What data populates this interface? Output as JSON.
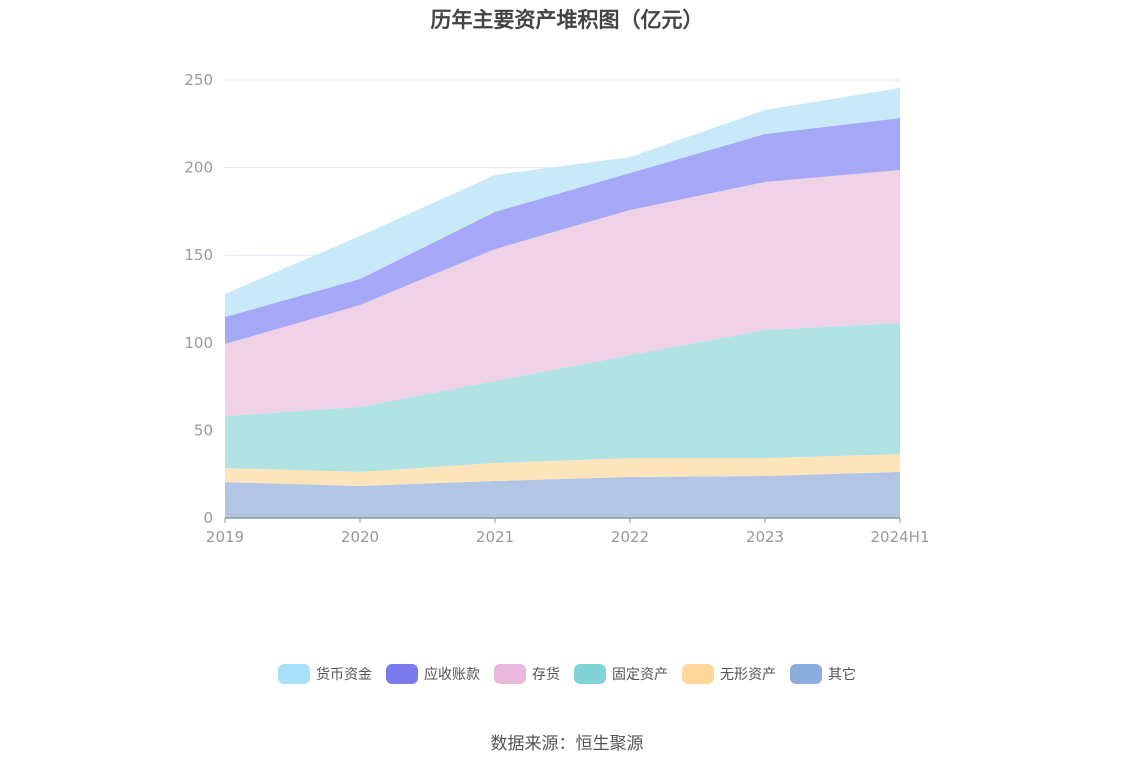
{
  "chart_data": {
    "type": "area",
    "stacked": true,
    "title": "历年主要资产堆积图（亿元）",
    "categories": [
      "2019",
      "2020",
      "2021",
      "2022",
      "2023",
      "2024H1"
    ],
    "ylim": [
      0,
      250
    ],
    "yticks": [
      0,
      50,
      100,
      150,
      200,
      250
    ],
    "grid": true,
    "legend_position": "bottom",
    "series": [
      {
        "name": "其它",
        "color": "#8caede",
        "fill": "#aec2e3",
        "values": [
          20.5,
          18.3,
          21.1,
          23.4,
          24.0,
          26.3
        ]
      },
      {
        "name": "无形资产",
        "color": "#fdd89a",
        "fill": "#fde3b6",
        "values": [
          8.0,
          8.0,
          10.3,
          10.8,
          10.2,
          10.2
        ]
      },
      {
        "name": "固定资产",
        "color": "#80d4d8",
        "fill": "#ade2e3",
        "values": [
          29.7,
          37.1,
          46.8,
          58.8,
          73.1,
          74.8
        ]
      },
      {
        "name": "存货",
        "color": "#e8b9dc",
        "fill": "#efd0e5",
        "values": [
          41.1,
          58.2,
          75.3,
          82.8,
          84.5,
          87.3
        ]
      },
      {
        "name": "应收账款",
        "color": "#7a7aee",
        "fill": "#a0a3f5",
        "values": [
          15.4,
          14.8,
          21.2,
          21.1,
          27.4,
          29.7
        ]
      },
      {
        "name": "货币资金",
        "color": "#a8e0fa",
        "fill": "#c4e8f8",
        "values": [
          13.2,
          24.6,
          21.1,
          9.1,
          13.7,
          17.1
        ]
      }
    ],
    "legend_order": [
      "货币资金",
      "应收账款",
      "存货",
      "固定资产",
      "无形资产",
      "其它"
    ]
  },
  "source": "数据来源：恒生聚源"
}
